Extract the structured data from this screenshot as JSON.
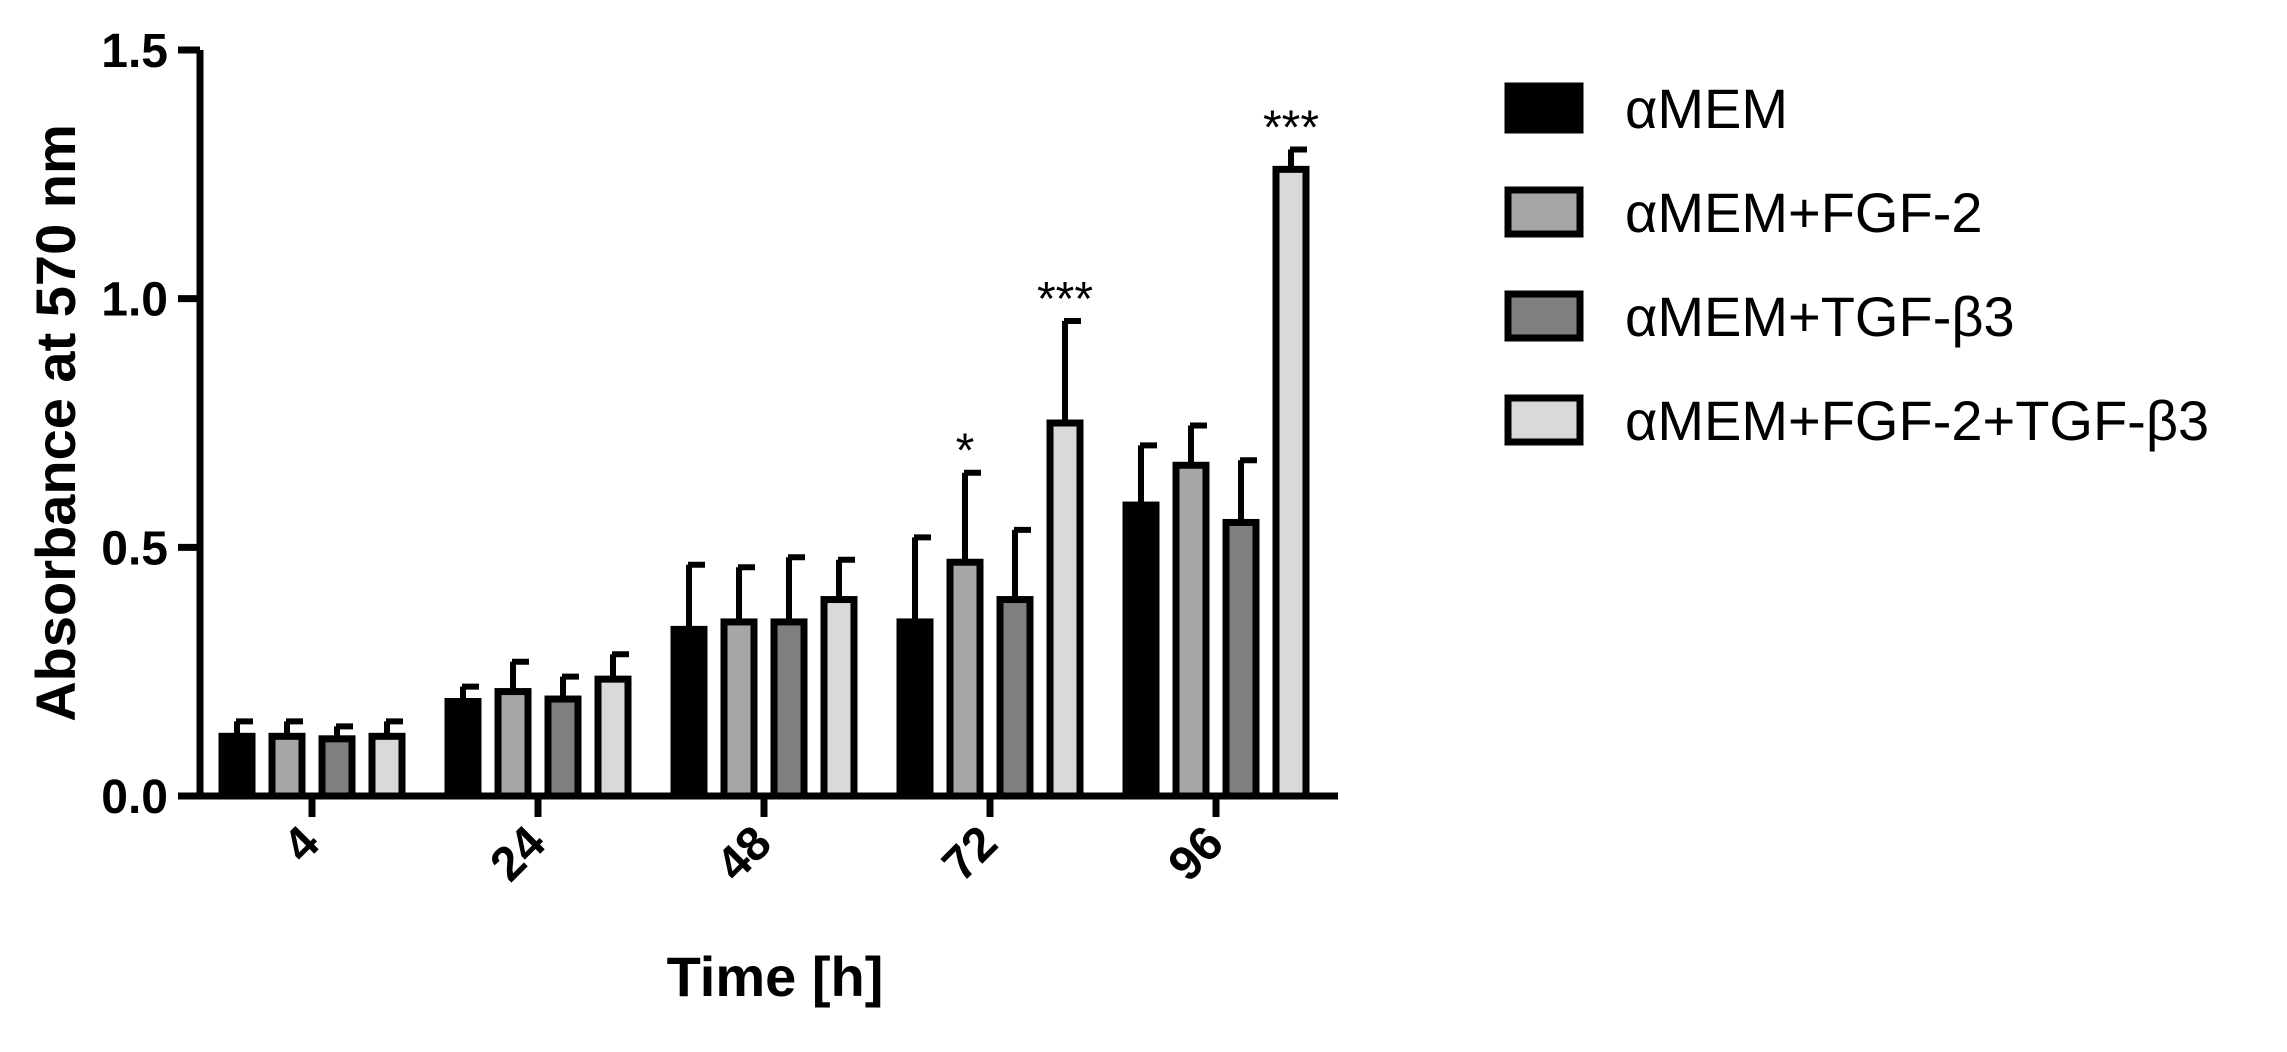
{
  "chart_data": {
    "type": "bar",
    "xlabel": "Time [h]",
    "ylabel": "Absorbance at 570 nm",
    "ylim": [
      0,
      1.5
    ],
    "yticks": [
      "0.0",
      "0.5",
      "1.0",
      "1.5"
    ],
    "categories": [
      "4",
      "24",
      "48",
      "72",
      "96"
    ],
    "legend_position": "right",
    "series": [
      {
        "name": "αMEM",
        "color": "#000000",
        "values": [
          0.12,
          0.19,
          0.335,
          0.35,
          0.585
        ],
        "errors": [
          0.03,
          0.03,
          0.13,
          0.17,
          0.12
        ],
        "significance": [
          "",
          "",
          "",
          "",
          ""
        ]
      },
      {
        "name": "αMEM+FGF-2",
        "color": "#a6a6a6",
        "values": [
          0.12,
          0.21,
          0.35,
          0.47,
          0.665
        ],
        "errors": [
          0.03,
          0.06,
          0.11,
          0.18,
          0.08
        ],
        "significance": [
          "",
          "",
          "",
          "*",
          ""
        ]
      },
      {
        "name": "αMEM+TGF-β3",
        "color": "#7f7f7f",
        "values": [
          0.115,
          0.195,
          0.35,
          0.395,
          0.55
        ],
        "errors": [
          0.025,
          0.045,
          0.13,
          0.14,
          0.125
        ],
        "significance": [
          "",
          "",
          "",
          "",
          ""
        ]
      },
      {
        "name": "αMEM+FGF-2+TGF-β3",
        "color": "#d9d9d9",
        "values": [
          0.12,
          0.235,
          0.395,
          0.75,
          1.26
        ],
        "errors": [
          0.03,
          0.05,
          0.08,
          0.205,
          0.04
        ],
        "significance": [
          "",
          "",
          "",
          "***",
          "***"
        ]
      }
    ]
  }
}
